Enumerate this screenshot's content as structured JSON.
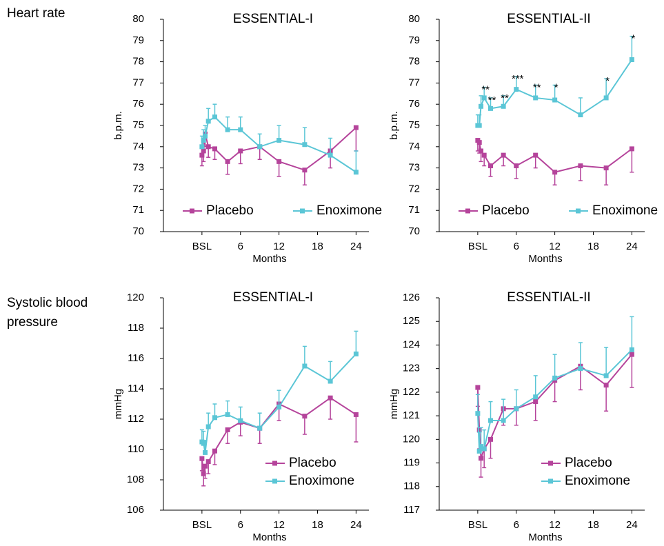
{
  "row_labels": [
    "Heart rate",
    "Systolic blood\npressure"
  ],
  "chart_data": [
    {
      "type": "line",
      "title": "ESSENTIAL-I",
      "xlabel": "Months",
      "ylabel": "b.p.m.",
      "x": [
        0,
        0.25,
        0.5,
        1,
        2,
        4,
        6,
        9,
        12,
        16,
        20,
        24
      ],
      "xlim": [
        -6,
        26
      ],
      "xticks": [
        {
          "value": 0,
          "label": "BSL"
        },
        6,
        12,
        18,
        24
      ],
      "ylim": [
        70,
        80
      ],
      "yticks": [
        70,
        71,
        72,
        73,
        74,
        75,
        76,
        77,
        78,
        79,
        80
      ],
      "legend": "bottom",
      "series": [
        {
          "name": "Placebo",
          "color": "#b5449b",
          "values": [
            73.6,
            73.8,
            74.6,
            74.0,
            73.9,
            73.3,
            73.8,
            74.0,
            73.3,
            72.9,
            73.8,
            74.9
          ],
          "errors": [
            0.5,
            0.5,
            0.6,
            0.5,
            0.5,
            0.6,
            0.6,
            0.6,
            0.7,
            0.7,
            0.8,
            1.1
          ],
          "error_direction": "down"
        },
        {
          "name": "Enoximone",
          "color": "#5bc6d6",
          "values": [
            74.0,
            74.3,
            74.5,
            75.2,
            75.4,
            74.8,
            74.8,
            74.0,
            74.3,
            74.1,
            73.6,
            72.8
          ],
          "errors": [
            0.5,
            0.5,
            0.5,
            0.6,
            0.6,
            0.6,
            0.6,
            0.6,
            0.7,
            0.8,
            0.8,
            1.0
          ],
          "error_direction": "up"
        }
      ]
    },
    {
      "type": "line",
      "title": "ESSENTIAL-II",
      "xlabel": "Months",
      "ylabel": "b.p.m.",
      "x": [
        0,
        0.25,
        0.5,
        1,
        2,
        4,
        6,
        9,
        12,
        16,
        20,
        24
      ],
      "xlim": [
        -6,
        26
      ],
      "xticks": [
        {
          "value": 0,
          "label": "BSL"
        },
        6,
        12,
        18,
        24
      ],
      "ylim": [
        70,
        80
      ],
      "yticks": [
        70,
        71,
        72,
        73,
        74,
        75,
        76,
        77,
        78,
        79,
        80
      ],
      "legend": "bottom",
      "series": [
        {
          "name": "Placebo",
          "color": "#b5449b",
          "values": [
            74.3,
            74.2,
            73.8,
            73.6,
            73.1,
            73.6,
            73.1,
            73.6,
            72.8,
            73.1,
            73.0,
            73.9
          ],
          "errors": [
            0.5,
            0.5,
            0.5,
            0.5,
            0.5,
            0.5,
            0.6,
            0.6,
            0.6,
            0.7,
            0.8,
            1.1
          ],
          "error_direction": "down"
        },
        {
          "name": "Enoximone",
          "color": "#5bc6d6",
          "values": [
            75.0,
            75.0,
            75.9,
            76.3,
            75.8,
            75.9,
            76.7,
            76.3,
            76.2,
            75.5,
            76.3,
            78.1
          ],
          "errors": [
            0.5,
            0.5,
            0.5,
            0.5,
            0.5,
            0.5,
            0.6,
            0.6,
            0.7,
            0.8,
            0.9,
            1.1
          ],
          "error_direction": "up",
          "significance": [
            null,
            null,
            null,
            "**",
            "**",
            "**",
            "***",
            "**",
            "*",
            null,
            "*",
            "*"
          ]
        }
      ]
    },
    {
      "type": "line",
      "title": "ESSENTIAL-I",
      "xlabel": "Months",
      "ylabel": "mmHg",
      "x": [
        0,
        0.25,
        0.5,
        1,
        2,
        4,
        6,
        9,
        12,
        16,
        20,
        24
      ],
      "xlim": [
        -6,
        26
      ],
      "xticks": [
        {
          "value": 0,
          "label": "BSL"
        },
        6,
        12,
        18,
        24
      ],
      "ylim": [
        106,
        120
      ],
      "yticks": [
        106,
        108,
        110,
        112,
        114,
        116,
        118,
        120
      ],
      "legend": "lower right",
      "series": [
        {
          "name": "Placebo",
          "color": "#b5449b",
          "values": [
            109.4,
            108.4,
            108.9,
            109.2,
            109.9,
            111.3,
            111.8,
            111.4,
            113.0,
            112.2,
            113.4,
            112.3
          ],
          "errors": [
            0.8,
            0.8,
            0.8,
            0.8,
            0.9,
            0.9,
            0.9,
            1.0,
            1.1,
            1.2,
            1.4,
            1.8
          ],
          "error_direction": "down"
        },
        {
          "name": "Enoximone",
          "color": "#5bc6d6",
          "values": [
            110.5,
            110.4,
            109.8,
            111.5,
            112.1,
            112.3,
            111.9,
            111.4,
            112.8,
            115.5,
            114.5,
            116.3
          ],
          "errors": [
            0.8,
            0.8,
            0.8,
            0.9,
            0.9,
            0.9,
            0.9,
            1.0,
            1.1,
            1.3,
            1.3,
            1.5
          ],
          "error_direction": "up"
        }
      ]
    },
    {
      "type": "line",
      "title": "ESSENTIAL-II",
      "xlabel": "Months",
      "ylabel": "mmHg",
      "x": [
        0,
        0.25,
        0.5,
        1,
        2,
        4,
        6,
        9,
        12,
        16,
        20,
        24
      ],
      "xlim": [
        -6,
        26
      ],
      "xticks": [
        {
          "value": 0,
          "label": "BSL"
        },
        6,
        12,
        18,
        24
      ],
      "ylim": [
        117,
        126
      ],
      "yticks": [
        117,
        118,
        119,
        120,
        121,
        122,
        123,
        124,
        125,
        126
      ],
      "legend": "lower right",
      "series": [
        {
          "name": "Placebo",
          "color": "#b5449b",
          "values": [
            122.2,
            120.4,
            119.2,
            119.6,
            120.0,
            121.3,
            121.3,
            121.6,
            122.5,
            123.1,
            122.3,
            123.6
          ],
          "errors": [
            0.8,
            0.8,
            0.8,
            0.8,
            0.8,
            0.7,
            0.7,
            0.8,
            0.9,
            1.0,
            1.1,
            1.4
          ],
          "error_direction": "down"
        },
        {
          "name": "Enoximone",
          "color": "#5bc6d6",
          "values": [
            121.1,
            119.5,
            119.7,
            119.6,
            120.8,
            120.8,
            121.3,
            121.8,
            122.6,
            123.0,
            122.7,
            123.8
          ],
          "errors": [
            0.8,
            0.8,
            0.8,
            0.8,
            0.8,
            0.9,
            0.8,
            0.9,
            1.0,
            1.1,
            1.2,
            1.4
          ],
          "error_direction": "up"
        }
      ]
    }
  ]
}
